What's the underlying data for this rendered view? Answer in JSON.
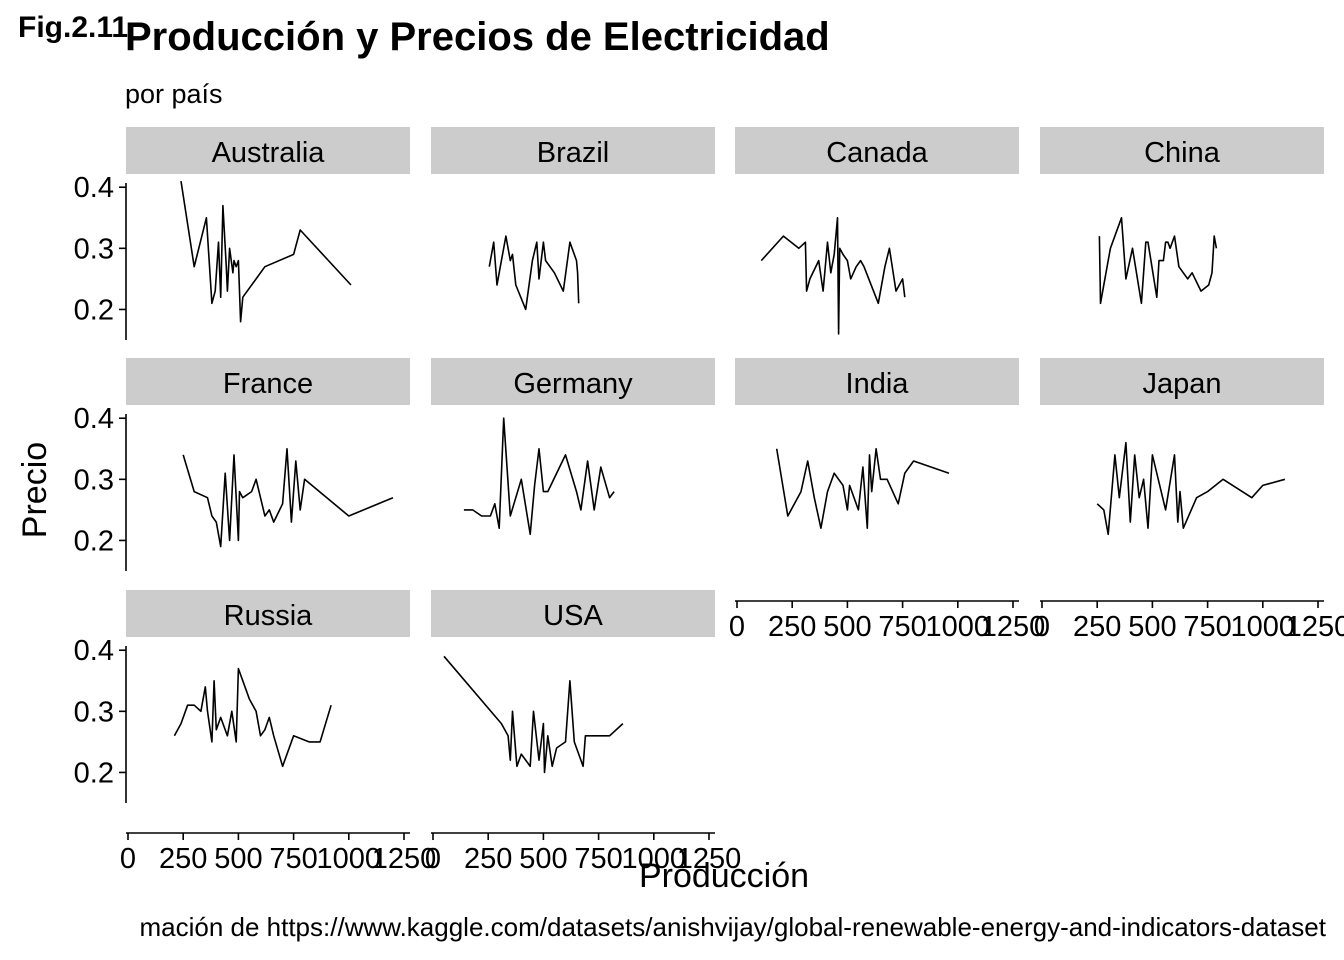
{
  "fig_label": "Fig.2.11",
  "title": "Producción y Precios de Electricidad",
  "subtitle": "por país",
  "caption": "mación de https://www.kaggle.com/datasets/anishvijay/global-renewable-energy-and-indicators-dataset",
  "colors": {
    "strip": "#cccccc",
    "line": "#000000",
    "background": "#ffffff"
  },
  "chart_data": {
    "type": "line",
    "layout": "facet_wrap",
    "xlabel": "Producción",
    "ylabel": "Precio",
    "xlim": [
      0,
      1250
    ],
    "ylim": [
      0.15,
      0.42
    ],
    "x_ticks": [
      0,
      250,
      500,
      750,
      1000,
      1250
    ],
    "x_tick_labels": [
      "0",
      "250",
      "500",
      "750",
      "1000",
      "1250"
    ],
    "y_ticks": [
      0.2,
      0.3,
      0.4
    ],
    "y_tick_labels": [
      "0.2",
      "0.3",
      "0.4"
    ],
    "grid": false,
    "panels": [
      {
        "name": "Australia",
        "x": [
          240,
          300,
          355,
          380,
          395,
          410,
          420,
          430,
          445,
          450,
          460,
          475,
          480,
          490,
          500,
          510,
          520,
          580,
          620,
          750,
          780,
          1010
        ],
        "y": [
          0.41,
          0.27,
          0.35,
          0.21,
          0.23,
          0.31,
          0.22,
          0.37,
          0.27,
          0.23,
          0.3,
          0.26,
          0.28,
          0.27,
          0.28,
          0.18,
          0.22,
          0.25,
          0.27,
          0.29,
          0.33,
          0.24
        ]
      },
      {
        "name": "Brazil",
        "x": [
          255,
          275,
          290,
          305,
          330,
          350,
          360,
          375,
          420,
          450,
          470,
          480,
          500,
          510,
          550,
          590,
          620,
          650,
          655,
          660
        ],
        "y": [
          0.27,
          0.31,
          0.24,
          0.27,
          0.32,
          0.28,
          0.29,
          0.24,
          0.2,
          0.28,
          0.31,
          0.25,
          0.31,
          0.28,
          0.26,
          0.23,
          0.31,
          0.28,
          0.26,
          0.21
        ]
      },
      {
        "name": "Canada",
        "x": [
          110,
          210,
          280,
          310,
          315,
          330,
          370,
          390,
          410,
          425,
          440,
          455,
          460,
          465,
          480,
          500,
          515,
          540,
          560,
          575,
          640,
          670,
          690,
          720,
          750,
          760
        ],
        "y": [
          0.28,
          0.32,
          0.3,
          0.31,
          0.23,
          0.25,
          0.28,
          0.23,
          0.31,
          0.26,
          0.29,
          0.35,
          0.16,
          0.3,
          0.29,
          0.28,
          0.25,
          0.27,
          0.28,
          0.27,
          0.21,
          0.27,
          0.3,
          0.23,
          0.25,
          0.22
        ]
      },
      {
        "name": "China",
        "x": [
          260,
          265,
          310,
          360,
          380,
          410,
          450,
          470,
          480,
          520,
          530,
          550,
          560,
          570,
          580,
          600,
          620,
          660,
          680,
          720,
          755,
          770,
          780,
          790
        ],
        "y": [
          0.32,
          0.21,
          0.3,
          0.35,
          0.25,
          0.3,
          0.21,
          0.31,
          0.31,
          0.22,
          0.28,
          0.28,
          0.31,
          0.31,
          0.3,
          0.32,
          0.27,
          0.25,
          0.26,
          0.23,
          0.24,
          0.26,
          0.32,
          0.3
        ]
      },
      {
        "name": "France",
        "x": [
          250,
          300,
          360,
          380,
          400,
          420,
          440,
          460,
          480,
          500,
          505,
          520,
          560,
          580,
          620,
          640,
          660,
          700,
          720,
          740,
          760,
          780,
          800,
          1000,
          1200
        ],
        "y": [
          0.34,
          0.28,
          0.27,
          0.24,
          0.23,
          0.19,
          0.31,
          0.2,
          0.34,
          0.2,
          0.28,
          0.27,
          0.28,
          0.3,
          0.24,
          0.25,
          0.23,
          0.26,
          0.35,
          0.23,
          0.33,
          0.25,
          0.3,
          0.24,
          0.27
        ]
      },
      {
        "name": "Germany",
        "x": [
          140,
          180,
          220,
          260,
          280,
          300,
          320,
          350,
          400,
          440,
          460,
          480,
          500,
          520,
          600,
          650,
          670,
          700,
          730,
          760,
          800,
          820
        ],
        "y": [
          0.25,
          0.25,
          0.24,
          0.24,
          0.26,
          0.22,
          0.4,
          0.24,
          0.3,
          0.21,
          0.29,
          0.35,
          0.28,
          0.28,
          0.34,
          0.28,
          0.25,
          0.33,
          0.25,
          0.32,
          0.27,
          0.28
        ]
      },
      {
        "name": "India",
        "x": [
          180,
          230,
          290,
          320,
          350,
          380,
          410,
          440,
          460,
          480,
          500,
          510,
          550,
          570,
          590,
          600,
          610,
          630,
          650,
          680,
          730,
          760,
          800,
          960
        ],
        "y": [
          0.35,
          0.24,
          0.28,
          0.33,
          0.27,
          0.22,
          0.28,
          0.31,
          0.3,
          0.29,
          0.25,
          0.29,
          0.25,
          0.32,
          0.22,
          0.34,
          0.28,
          0.35,
          0.3,
          0.3,
          0.26,
          0.31,
          0.33,
          0.31
        ]
      },
      {
        "name": "Japan",
        "x": [
          250,
          280,
          300,
          330,
          350,
          380,
          400,
          420,
          440,
          460,
          480,
          500,
          560,
          600,
          615,
          625,
          640,
          700,
          750,
          820,
          950,
          1000,
          1100
        ],
        "y": [
          0.26,
          0.25,
          0.21,
          0.34,
          0.27,
          0.36,
          0.23,
          0.34,
          0.27,
          0.3,
          0.22,
          0.34,
          0.25,
          0.34,
          0.23,
          0.28,
          0.22,
          0.27,
          0.28,
          0.3,
          0.27,
          0.29,
          0.3
        ]
      },
      {
        "name": "Russia",
        "x": [
          210,
          240,
          270,
          300,
          330,
          350,
          360,
          380,
          390,
          400,
          420,
          450,
          470,
          490,
          500,
          520,
          550,
          580,
          600,
          620,
          640,
          660,
          700,
          750,
          820,
          870,
          920
        ],
        "y": [
          0.26,
          0.28,
          0.31,
          0.31,
          0.3,
          0.34,
          0.3,
          0.25,
          0.35,
          0.27,
          0.29,
          0.26,
          0.3,
          0.25,
          0.37,
          0.35,
          0.32,
          0.3,
          0.26,
          0.27,
          0.29,
          0.26,
          0.21,
          0.26,
          0.25,
          0.25,
          0.31
        ]
      },
      {
        "name": "USA",
        "x": [
          50,
          310,
          340,
          350,
          360,
          380,
          400,
          440,
          455,
          480,
          500,
          505,
          520,
          540,
          560,
          600,
          620,
          640,
          680,
          690,
          700,
          750,
          800,
          860
        ],
        "y": [
          0.39,
          0.28,
          0.26,
          0.22,
          0.3,
          0.21,
          0.23,
          0.21,
          0.3,
          0.22,
          0.28,
          0.2,
          0.26,
          0.21,
          0.24,
          0.25,
          0.35,
          0.25,
          0.21,
          0.26,
          0.26,
          0.26,
          0.26,
          0.28
        ]
      }
    ]
  }
}
